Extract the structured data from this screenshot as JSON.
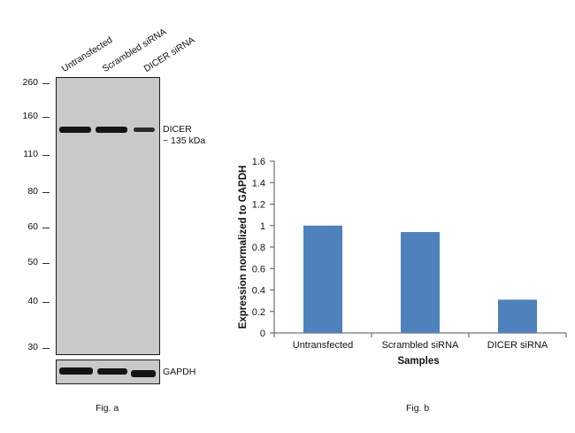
{
  "western_blot": {
    "lane_labels": [
      "Untransfected",
      "Scrambled siRNA",
      "DICER siRNA"
    ],
    "mw_markers": [
      "260",
      "160",
      "110",
      "80",
      "60",
      "50",
      "40",
      "30"
    ],
    "target_label": "DICER",
    "target_size": "~ 135 kDa",
    "loading_control_label": "GAPDH",
    "caption": "Fig. a"
  },
  "chart_caption": "Fig. b",
  "chart_data": {
    "type": "bar",
    "categories": [
      "Untransfected",
      "Scrambled siRNA",
      "DICER siRNA"
    ],
    "values": [
      1.0,
      0.94,
      0.31
    ],
    "xlabel": "Samples",
    "ylabel": "Expression normalized to GAPDH",
    "ylim": [
      0,
      1.6
    ],
    "yticks": [
      "0",
      "0.2",
      "0.4",
      "0.6",
      "0.8",
      "1",
      "1.2",
      "1.4",
      "1.6"
    ],
    "grid": false,
    "bar_color": "#4f81bd"
  }
}
